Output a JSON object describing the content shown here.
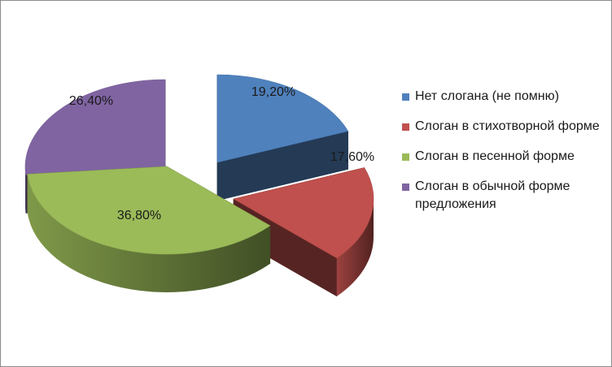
{
  "chart_data": {
    "type": "pie",
    "title": "",
    "legend_position": "right",
    "series": [
      {
        "name": "Нет слогана (не помню)",
        "label": "19,20%",
        "value": 19.2,
        "color": "#4f81bd"
      },
      {
        "name": "Слоган в стихотворной форме",
        "label": "17,60%",
        "value": 17.6,
        "color": "#c0504d"
      },
      {
        "name": "Слоган в песенной форме",
        "label": "36,80%",
        "value": 36.8,
        "color": "#9bbb59"
      },
      {
        "name": "Слоган в обычной форме предложения",
        "label": "26,40%",
        "value": 26.4,
        "color": "#8064a2"
      }
    ]
  }
}
